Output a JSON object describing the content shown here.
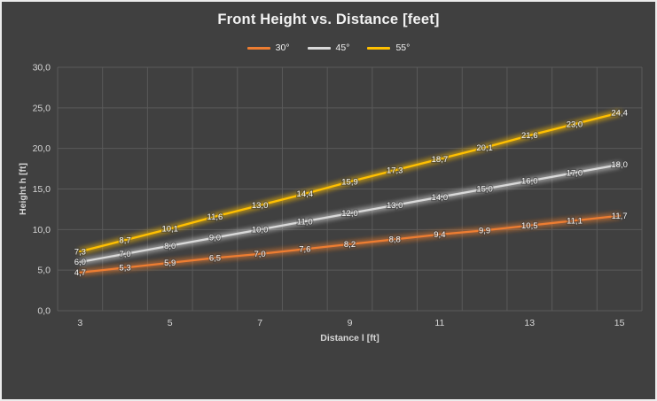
{
  "colors": {
    "background": "#404040",
    "frame_border": "#ececec",
    "gridline": "#5a5a5a",
    "title_text": "#f2f2f2",
    "tick_text": "#d6d6d6",
    "axis_title_text": "#d6d6d6",
    "data_label_text": "#f7f7f7",
    "data_label_outline": "#3a3a3a"
  },
  "chart_data": {
    "type": "line",
    "title": "Front Height vs. Distance [feet]",
    "xlabel": "Distance l [ft]",
    "ylabel": "Height h [ft]",
    "x": [
      3,
      4,
      5,
      6,
      7,
      8,
      9,
      10,
      11,
      12,
      13,
      14,
      15
    ],
    "x_tick_label_indices": [
      0,
      2,
      4,
      6,
      8,
      10,
      12
    ],
    "series": [
      {
        "name": "30°",
        "color": "#ED7D31",
        "values": [
          4.7,
          5.3,
          5.9,
          6.5,
          7.0,
          7.6,
          8.2,
          8.8,
          9.4,
          9.9,
          10.5,
          11.1,
          11.7
        ]
      },
      {
        "name": "45°",
        "color": "#D9D9D9",
        "values": [
          6.0,
          7.0,
          8.0,
          9.0,
          10.0,
          11.0,
          12.0,
          13.0,
          14.0,
          15.0,
          16.0,
          17.0,
          18.0
        ]
      },
      {
        "name": "55°",
        "color": "#FFC000",
        "values": [
          7.3,
          8.7,
          10.1,
          11.6,
          13.0,
          14.4,
          15.9,
          17.3,
          18.7,
          20.1,
          21.6,
          23.0,
          24.4
        ]
      }
    ],
    "ylim": [
      0,
      30
    ],
    "y_ticks": [
      0,
      5,
      10,
      15,
      20,
      25,
      30
    ],
    "grid": true,
    "legend_position": "top",
    "decimal_separator": ",",
    "data_labels": true,
    "glow_effect": true
  }
}
